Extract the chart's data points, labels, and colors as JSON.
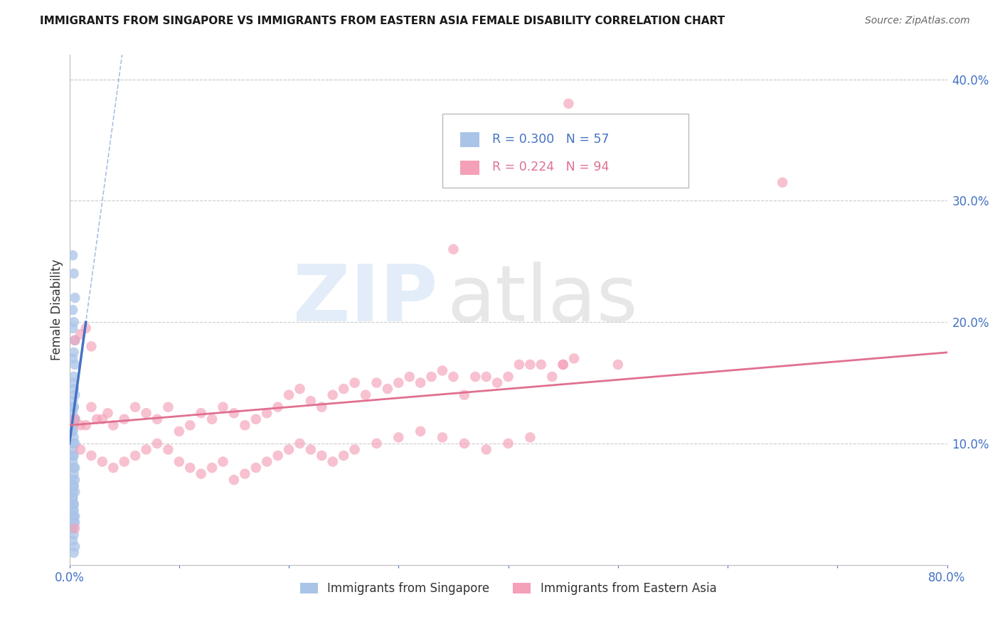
{
  "title": "IMMIGRANTS FROM SINGAPORE VS IMMIGRANTS FROM EASTERN ASIA FEMALE DISABILITY CORRELATION CHART",
  "source": "Source: ZipAtlas.com",
  "ylabel": "Female Disability",
  "xlim": [
    0.0,
    0.8
  ],
  "ylim": [
    0.0,
    0.42
  ],
  "legend1_label": "Immigrants from Singapore",
  "legend2_label": "Immigrants from Eastern Asia",
  "r1": 0.3,
  "n1": 57,
  "r2": 0.224,
  "n2": 94,
  "color_singapore": "#aac4e8",
  "color_eastern_asia": "#f4a0b8",
  "color_line_singapore": "#4472c4",
  "color_line_eastern_asia": "#e07090",
  "color_axis_labels": "#4472c4",
  "sg_x": [
    0.003,
    0.004,
    0.005,
    0.003,
    0.004,
    0.003,
    0.005,
    0.004,
    0.003,
    0.005,
    0.004,
    0.003,
    0.004,
    0.005,
    0.003,
    0.004,
    0.003,
    0.005,
    0.004,
    0.003,
    0.004,
    0.005,
    0.003,
    0.004,
    0.003,
    0.005,
    0.004,
    0.003,
    0.004,
    0.005,
    0.003,
    0.004,
    0.003,
    0.005,
    0.004,
    0.003,
    0.004,
    0.003,
    0.005,
    0.004,
    0.003,
    0.004,
    0.003,
    0.005,
    0.004,
    0.003,
    0.004,
    0.003,
    0.005,
    0.004,
    0.003,
    0.004,
    0.003,
    0.005,
    0.004,
    0.003,
    0.004
  ],
  "sg_y": [
    0.255,
    0.24,
    0.22,
    0.21,
    0.2,
    0.195,
    0.185,
    0.175,
    0.17,
    0.165,
    0.155,
    0.15,
    0.145,
    0.14,
    0.135,
    0.13,
    0.125,
    0.12,
    0.115,
    0.11,
    0.105,
    0.1,
    0.095,
    0.09,
    0.085,
    0.08,
    0.075,
    0.07,
    0.065,
    0.06,
    0.055,
    0.05,
    0.045,
    0.04,
    0.035,
    0.03,
    0.025,
    0.02,
    0.015,
    0.01,
    0.04,
    0.05,
    0.06,
    0.07,
    0.08,
    0.09,
    0.1,
    0.11,
    0.12,
    0.13,
    0.03,
    0.04,
    0.05,
    0.035,
    0.045,
    0.055,
    0.065
  ],
  "ea_x": [
    0.005,
    0.01,
    0.015,
    0.02,
    0.025,
    0.03,
    0.035,
    0.04,
    0.05,
    0.06,
    0.07,
    0.08,
    0.09,
    0.1,
    0.11,
    0.12,
    0.13,
    0.14,
    0.15,
    0.16,
    0.17,
    0.18,
    0.19,
    0.2,
    0.21,
    0.22,
    0.23,
    0.24,
    0.25,
    0.26,
    0.27,
    0.28,
    0.29,
    0.3,
    0.31,
    0.32,
    0.33,
    0.34,
    0.35,
    0.36,
    0.37,
    0.38,
    0.39,
    0.4,
    0.41,
    0.42,
    0.43,
    0.44,
    0.45,
    0.46,
    0.01,
    0.02,
    0.03,
    0.04,
    0.05,
    0.06,
    0.07,
    0.08,
    0.09,
    0.1,
    0.11,
    0.12,
    0.13,
    0.14,
    0.15,
    0.16,
    0.17,
    0.18,
    0.19,
    0.2,
    0.21,
    0.22,
    0.23,
    0.24,
    0.25,
    0.26,
    0.28,
    0.3,
    0.32,
    0.34,
    0.36,
    0.38,
    0.4,
    0.42,
    0.35,
    0.005,
    0.01,
    0.015,
    0.02,
    0.65,
    0.45,
    0.5,
    0.005,
    0.455
  ],
  "ea_y": [
    0.12,
    0.115,
    0.115,
    0.13,
    0.12,
    0.12,
    0.125,
    0.115,
    0.12,
    0.13,
    0.125,
    0.12,
    0.13,
    0.11,
    0.115,
    0.125,
    0.12,
    0.13,
    0.125,
    0.115,
    0.12,
    0.125,
    0.13,
    0.14,
    0.145,
    0.135,
    0.13,
    0.14,
    0.145,
    0.15,
    0.14,
    0.15,
    0.145,
    0.15,
    0.155,
    0.15,
    0.155,
    0.16,
    0.155,
    0.14,
    0.155,
    0.155,
    0.15,
    0.155,
    0.165,
    0.165,
    0.165,
    0.155,
    0.165,
    0.17,
    0.095,
    0.09,
    0.085,
    0.08,
    0.085,
    0.09,
    0.095,
    0.1,
    0.095,
    0.085,
    0.08,
    0.075,
    0.08,
    0.085,
    0.07,
    0.075,
    0.08,
    0.085,
    0.09,
    0.095,
    0.1,
    0.095,
    0.09,
    0.085,
    0.09,
    0.095,
    0.1,
    0.105,
    0.11,
    0.105,
    0.1,
    0.095,
    0.1,
    0.105,
    0.26,
    0.185,
    0.19,
    0.195,
    0.18,
    0.315,
    0.165,
    0.165,
    0.03,
    0.38
  ]
}
